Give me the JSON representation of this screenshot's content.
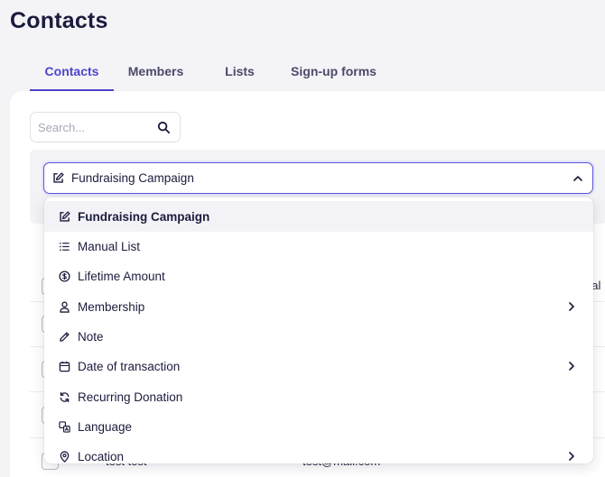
{
  "page": {
    "title": "Contacts"
  },
  "tabs": [
    {
      "label": "Contacts",
      "active": true
    },
    {
      "label": "Members",
      "active": false
    },
    {
      "label": "Lists",
      "active": false
    },
    {
      "label": "Sign-up forms",
      "active": false
    }
  ],
  "search": {
    "placeholder": "Search...",
    "value": ""
  },
  "filter": {
    "selected_label": "Fundraising Campaign"
  },
  "dropdown": {
    "items": [
      {
        "label": "Fundraising Campaign",
        "icon": "edit-square-icon",
        "selected": true,
        "has_submenu": false
      },
      {
        "label": "Manual List",
        "icon": "list-icon",
        "selected": false,
        "has_submenu": false
      },
      {
        "label": "Lifetime Amount",
        "icon": "dollar-circle-icon",
        "selected": false,
        "has_submenu": false
      },
      {
        "label": "Membership",
        "icon": "person-icon",
        "selected": false,
        "has_submenu": true
      },
      {
        "label": "Note",
        "icon": "pencil-icon",
        "selected": false,
        "has_submenu": false
      },
      {
        "label": "Date of transaction",
        "icon": "calendar-icon",
        "selected": false,
        "has_submenu": true
      },
      {
        "label": "Recurring Donation",
        "icon": "refresh-icon",
        "selected": false,
        "has_submenu": false
      },
      {
        "label": "Language",
        "icon": "translate-icon",
        "selected": false,
        "has_submenu": false
      },
      {
        "label": "Location",
        "icon": "location-pin-icon",
        "selected": false,
        "has_submenu": true
      }
    ]
  },
  "table": {
    "partial_header": "ual",
    "last_row": {
      "name": "test test",
      "email": "test@mail.com"
    }
  },
  "colors": {
    "accent": "#4b46c9",
    "text": "#1b1c3d",
    "background": "#f4f4f7"
  }
}
